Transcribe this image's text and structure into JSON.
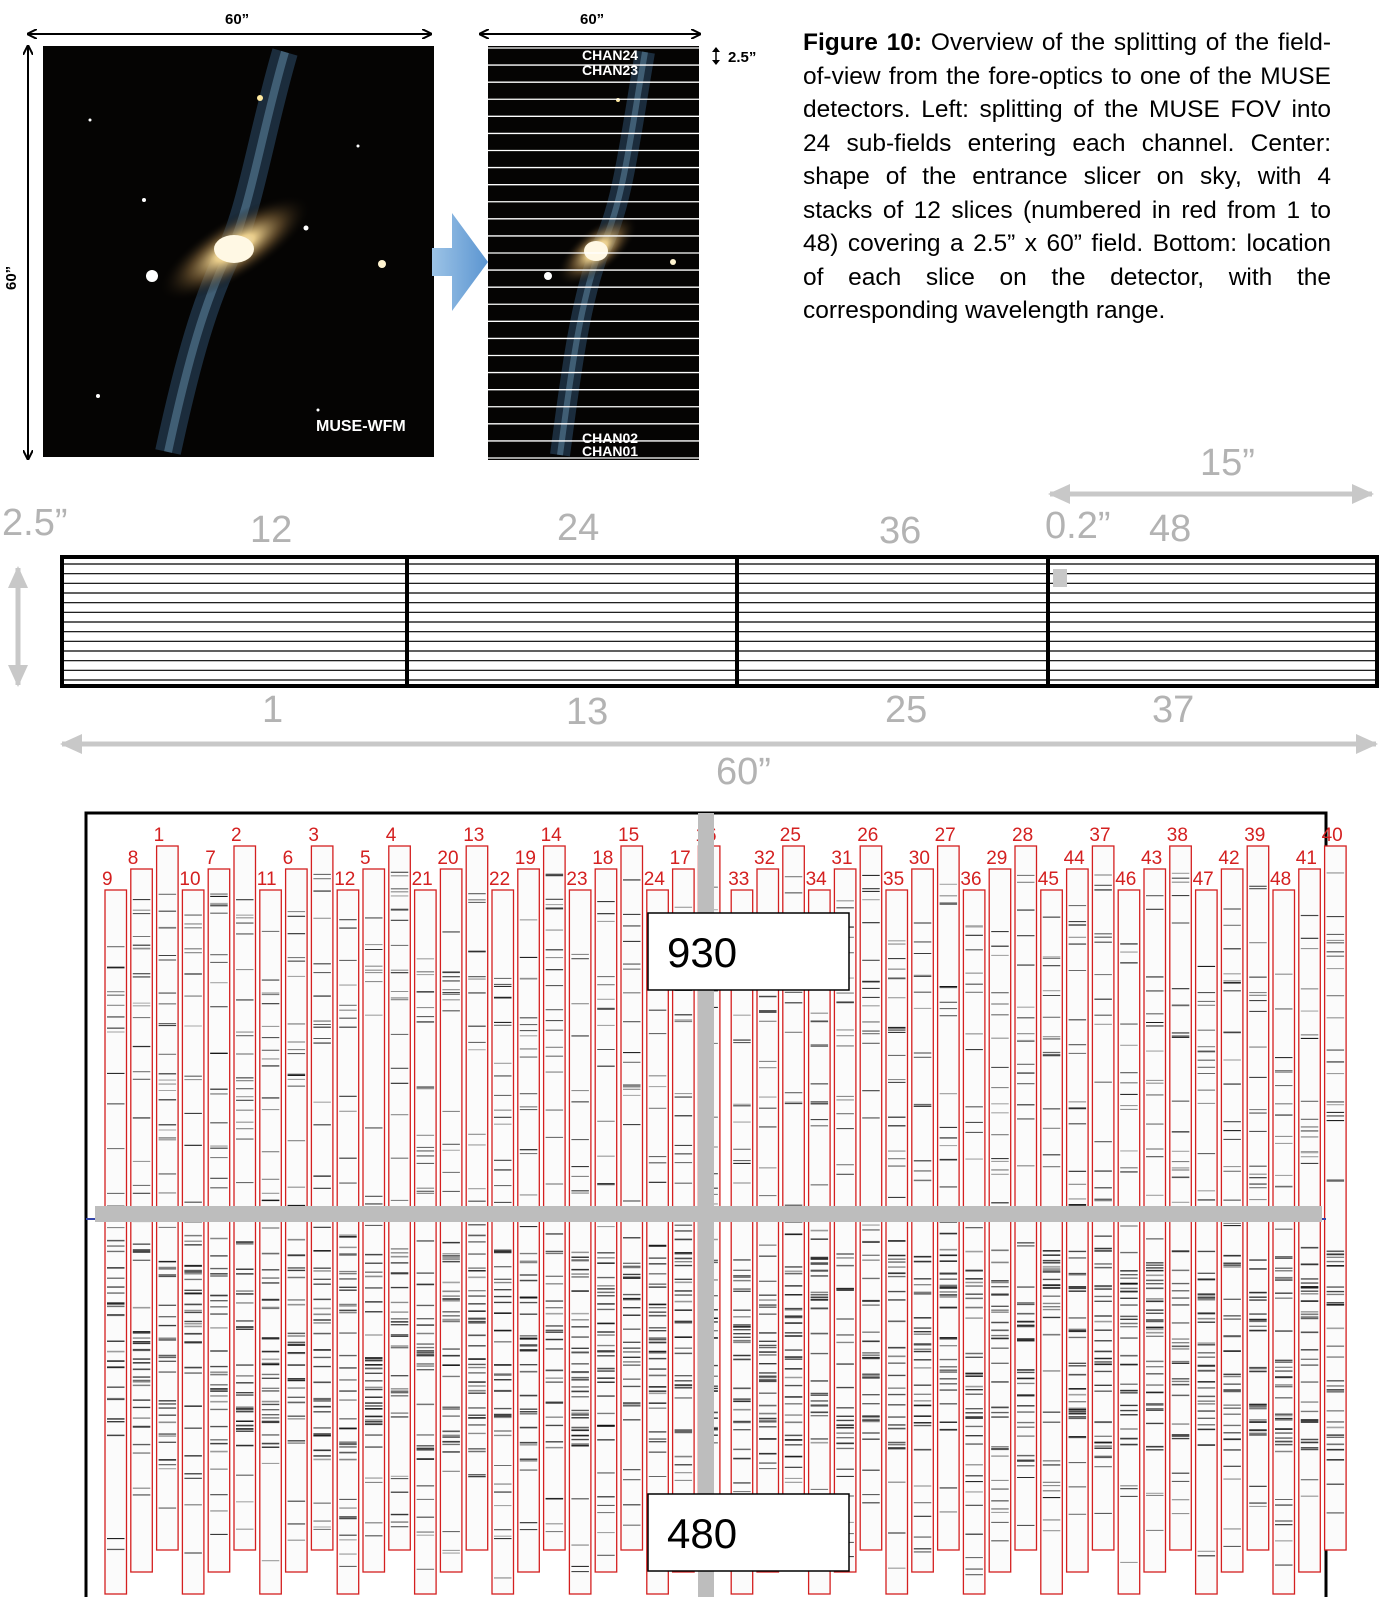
{
  "caption": {
    "label": "Figure 10:",
    "text": "Overview of the splitting of the field-of-view from the fore-optics to one of the MUSE detectors. Left: splitting of the MUSE FOV into 24 sub-fields entering each channel. Center: shape of the entrance slicer on sky, with 4 stacks of 12 slices (numbered in red from 1 to 48) covering a 2.5” x 60” field. Bottom: location of each slice on the detector, with the corresponding wavelength range."
  },
  "left_panel": {
    "width_label": "60”",
    "height_label": "60”",
    "image_label": "MUSE-WFM"
  },
  "center_panel": {
    "width_label": "60”",
    "slice_height_label": "2.5”",
    "channels_top": [
      "CHAN24",
      "CHAN23"
    ],
    "channels_bottom": [
      "CHAN02",
      "CHAN01"
    ],
    "channel_count": 24
  },
  "slicer": {
    "height_label": "2.5”",
    "width_label": "60”",
    "stack_width_label": "15”",
    "slice_label": "0.2”",
    "top_numbers": [
      "12",
      "24",
      "36",
      "48"
    ],
    "bottom_numbers": [
      "1",
      "13",
      "25",
      "37"
    ],
    "slices_per_stack": 12
  },
  "detector": {
    "slices": [
      "9",
      "8",
      "1",
      "10",
      "7",
      "2",
      "11",
      "6",
      "3",
      "12",
      "5",
      "4",
      "21",
      "20",
      "13",
      "22",
      "19",
      "14",
      "23",
      "18",
      "15",
      "24",
      "17",
      "16",
      "33",
      "32",
      "25",
      "34",
      "31",
      "26",
      "35",
      "30",
      "27",
      "36",
      "29",
      "28",
      "45",
      "44",
      "37",
      "46",
      "43",
      "38",
      "47",
      "42",
      "39",
      "48",
      "41",
      "40"
    ],
    "wavelength_top": "930",
    "wavelength_bottom": "480"
  },
  "colors": {
    "slice_outline": "#d42020",
    "dimension_grey": "#b3b3b3",
    "arrow_blue": "#6fa8dc"
  }
}
